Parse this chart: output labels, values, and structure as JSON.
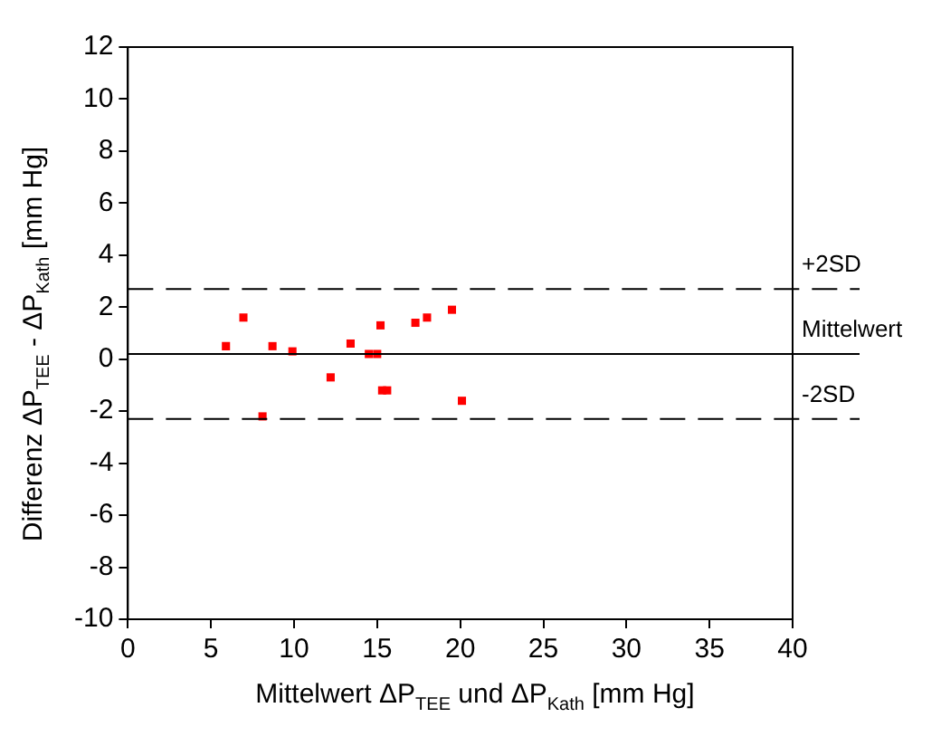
{
  "chart_data": {
    "type": "scatter",
    "xlabel": "Mittelwert ΔP$_{TEE}$ und ΔP$_{Kath}$ [mm Hg]",
    "ylabel": "Differenz ΔP$_{TEE}$ - ΔP$_{Kath}$ [mm Hg]",
    "x": [
      5.9,
      6.95,
      8.1,
      8.7,
      9.9,
      12.2,
      13.4,
      14.5,
      15.0,
      15.2,
      15.3,
      15.6,
      17.3,
      18.0,
      19.5,
      20.1
    ],
    "series": [
      {
        "color": "#ff0000",
        "values": [
          0.5,
          1.6,
          -2.2,
          0.5,
          0.3,
          -0.7,
          0.6,
          0.2,
          0.2,
          1.3,
          -1.2,
          -1.2,
          1.4,
          1.6,
          1.9,
          -1.6
        ]
      }
    ],
    "xlim": [
      0,
      40
    ],
    "xticks": [
      0,
      5,
      10,
      15,
      20,
      25,
      30,
      35,
      40
    ],
    "ylim": [
      -10,
      12
    ],
    "yticks": [
      -10,
      -8,
      -6,
      -4,
      -2,
      0,
      2,
      4,
      6,
      8,
      10,
      12
    ],
    "ref_lines": [
      {
        "axis": "y",
        "value": 2.7,
        "label": "+2SD",
        "line_style": "dashed",
        "color": "#000000"
      },
      {
        "axis": "y",
        "value": 0.2,
        "label": "Mittelwert",
        "line_style": "solid",
        "color": "#000000"
      },
      {
        "axis": "y",
        "value": -2.3,
        "label": "-2SD",
        "line_style": "dashed",
        "color": "#000000"
      }
    ],
    "marker": "square",
    "grid": false,
    "legend": false
  }
}
